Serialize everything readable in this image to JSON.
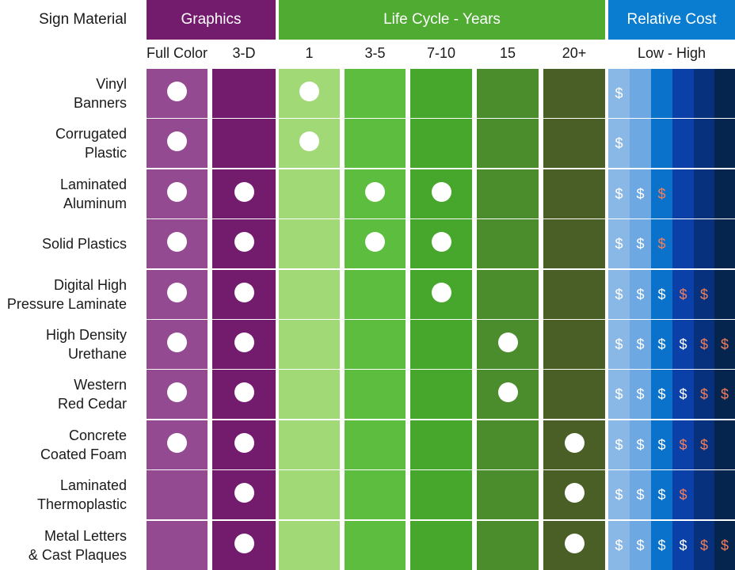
{
  "chart_data": {
    "type": "table",
    "corner_label": "Sign Material",
    "groups": [
      {
        "name": "Graphics",
        "color": "#731c6e",
        "columns": [
          "Full Color",
          "3-D"
        ]
      },
      {
        "name": "Life Cycle - Years",
        "color": "#50ab32",
        "columns": [
          "1",
          "3-5",
          "7-10",
          "15",
          "20+"
        ]
      },
      {
        "name": "Relative Cost",
        "color": "#0a7dd0",
        "columns": [
          "Low - High"
        ]
      }
    ],
    "colors": {
      "full_color": "#944a91",
      "three_d": "#731c6e",
      "life": [
        "#a2d977",
        "#5cbd3f",
        "#46a72c",
        "#4b8d2c",
        "#4a5f25"
      ],
      "cost": [
        "#8ab8e6",
        "#6da8e2",
        "#0b72cc",
        "#0a40a8",
        "#07317c",
        "#05244e"
      ],
      "dollar_white": "#ffffff",
      "dollar_orange": "#f07e5a"
    },
    "dot_symbol": "white circle",
    "rows": [
      {
        "label": "Vinyl|Banners",
        "full_color": true,
        "three_d": false,
        "life": "1",
        "cost": "$"
      },
      {
        "label": "Corrugated|Plastic",
        "full_color": true,
        "three_d": false,
        "life": "1",
        "cost": "$"
      },
      {
        "label": "Laminated|Aluminum",
        "full_color": true,
        "three_d": true,
        "life": [
          "3-5",
          "7-10"
        ],
        "cost": "$$$"
      },
      {
        "label": "Solid Plastics",
        "full_color": true,
        "three_d": true,
        "life": [
          "3-5",
          "7-10"
        ],
        "cost": "$$$"
      },
      {
        "label": "Digital High|Pressure Laminate",
        "full_color": true,
        "three_d": true,
        "life": "7-10",
        "cost": "$$$$$"
      },
      {
        "label": "High Density|Urethane",
        "full_color": true,
        "three_d": true,
        "life": "15",
        "cost": "$$$$$$"
      },
      {
        "label": "Western|Red Cedar",
        "full_color": true,
        "three_d": true,
        "life": "15",
        "cost": "$$$$$$"
      },
      {
        "label": "Concrete|Coated Foam",
        "full_color": true,
        "three_d": true,
        "life": "20+",
        "cost": "$$$$$"
      },
      {
        "label": "Laminated|Thermoplastic",
        "full_color": false,
        "three_d": true,
        "life": "20+",
        "cost": "$$$$"
      },
      {
        "label": "Metal Letters|& Cast Plaques",
        "full_color": false,
        "three_d": true,
        "life": "20+",
        "cost": "$$$$$$"
      }
    ],
    "cost_symbol_colors": [
      "white",
      "white",
      "white",
      "white",
      "orange",
      "orange"
    ],
    "cost_symbol_colors_by_count": {
      "1": [
        "white"
      ],
      "3": [
        "white",
        "white",
        "orange"
      ],
      "4": [
        "white",
        "white",
        "white",
        "orange"
      ],
      "5": [
        "white",
        "white",
        "white",
        "orange",
        "orange"
      ],
      "6": [
        "white",
        "white",
        "white",
        "white",
        "orange",
        "orange"
      ]
    }
  }
}
